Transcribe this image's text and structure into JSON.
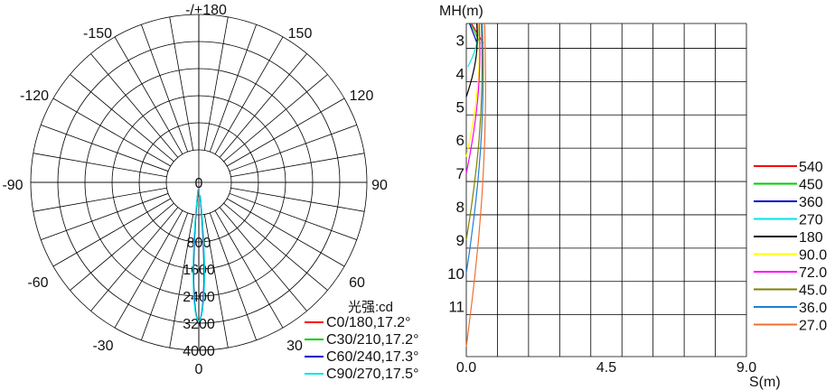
{
  "chart_data": [
    {
      "type": "polar",
      "title": "",
      "angle_labels": [
        "-/+180",
        "-150",
        "150",
        "-120",
        "120",
        "-90",
        "90",
        "-60",
        "60",
        "-30",
        "30",
        "0"
      ],
      "radial_labels": [
        "0",
        "800",
        "1600",
        "2400",
        "3200",
        "4000"
      ],
      "radial_max": 4000,
      "unit_label": "光强:cd",
      "series": [
        {
          "name": "C0/180,17.2°",
          "color": "#ff0000",
          "peak": 4000,
          "half_angle": 17.2,
          "bulge": 1.0
        },
        {
          "name": "C30/210,17.2°",
          "color": "#00cc00",
          "peak": 4000,
          "half_angle": 17.2,
          "bulge": 0.98
        },
        {
          "name": "C60/240,17.3°",
          "color": "#0000cc",
          "peak": 4000,
          "half_angle": 17.3,
          "bulge": 0.97
        },
        {
          "name": "C90/270,17.5°",
          "color": "#00e5e5",
          "peak": 4000,
          "half_angle": 17.5,
          "bulge": 1.05
        }
      ]
    },
    {
      "type": "line",
      "xlabel": "S(m)",
      "ylabel": "MH(m)",
      "x_tick_labels": [
        "0.0",
        "4.5",
        "9.0"
      ],
      "y_tick_labels": [
        "3",
        "4",
        "5",
        "6",
        "7",
        "8",
        "9",
        "10",
        "11"
      ],
      "xlim": [
        0,
        9
      ],
      "ylim": [
        12.5,
        2.5
      ],
      "series": [
        {
          "name": "540",
          "color": "#ff0000",
          "y_start": 2.5,
          "x_start": 0.55,
          "y_end": 2.5
        },
        {
          "name": "450",
          "color": "#00cc00",
          "y_start": 2.5,
          "x_start": 0.45,
          "y_end": 2.5
        },
        {
          "name": "360",
          "color": "#0000cc",
          "y_start": 2.5,
          "x_start": 0.35,
          "y_end": 2.5
        },
        {
          "name": "270",
          "color": "#00e5e5",
          "y_start": 3.8,
          "x_start": 0.05,
          "y_end": 2.5
        },
        {
          "name": "180",
          "color": "#000000",
          "y_start": 4.7,
          "x_start": 0.0,
          "y_end": 2.5
        },
        {
          "name": "90.0",
          "color": "#ffff00",
          "y_start": 6.5,
          "x_start": 0.0,
          "y_end": 2.5
        },
        {
          "name": "72.0",
          "color": "#ff00ff",
          "y_start": 7.0,
          "x_start": 0.0,
          "y_end": 2.5
        },
        {
          "name": "45.0",
          "color": "#808000",
          "y_start": 9.0,
          "x_start": 0.0,
          "y_end": 2.5
        },
        {
          "name": "36.0",
          "color": "#1f7fd0",
          "y_start": 10.0,
          "x_start": 0.0,
          "y_end": 2.5
        },
        {
          "name": "27.0",
          "color": "#f07030",
          "y_start": 12.2,
          "x_start": 0.0,
          "y_end": 2.5
        }
      ]
    }
  ]
}
